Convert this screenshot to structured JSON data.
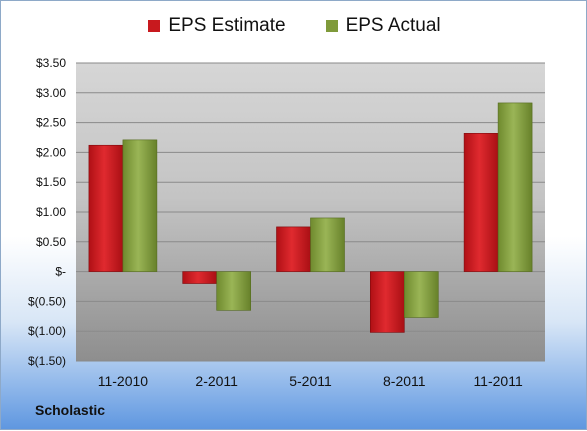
{
  "chart_data": {
    "type": "bar",
    "categories": [
      "11-2010",
      "2-2011",
      "5-2011",
      "8-2011",
      "11-2011"
    ],
    "series": [
      {
        "name": "EPS Estimate",
        "values": [
          2.12,
          -0.2,
          0.75,
          -1.02,
          2.32
        ],
        "color": "#c8191e"
      },
      {
        "name": "EPS Actual",
        "values": [
          2.21,
          -0.65,
          0.9,
          -0.77,
          2.83
        ],
        "color": "#7f9a3a"
      }
    ],
    "ylim": [
      -1.5,
      3.5
    ],
    "yticks": [
      3.5,
      3.0,
      2.5,
      2.0,
      1.5,
      1.0,
      0.5,
      0,
      -0.5,
      -1.0,
      -1.5
    ],
    "ytick_labels": [
      "$3.50",
      "$3.00",
      "$2.50",
      "$2.00",
      "$1.50",
      "$1.00",
      "$0.50",
      "$-",
      "$(0.50)",
      "$(1.00)",
      "$(1.50)"
    ],
    "grid": true,
    "legend_position": "top-center"
  },
  "footer": {
    "company": "Scholastic"
  }
}
